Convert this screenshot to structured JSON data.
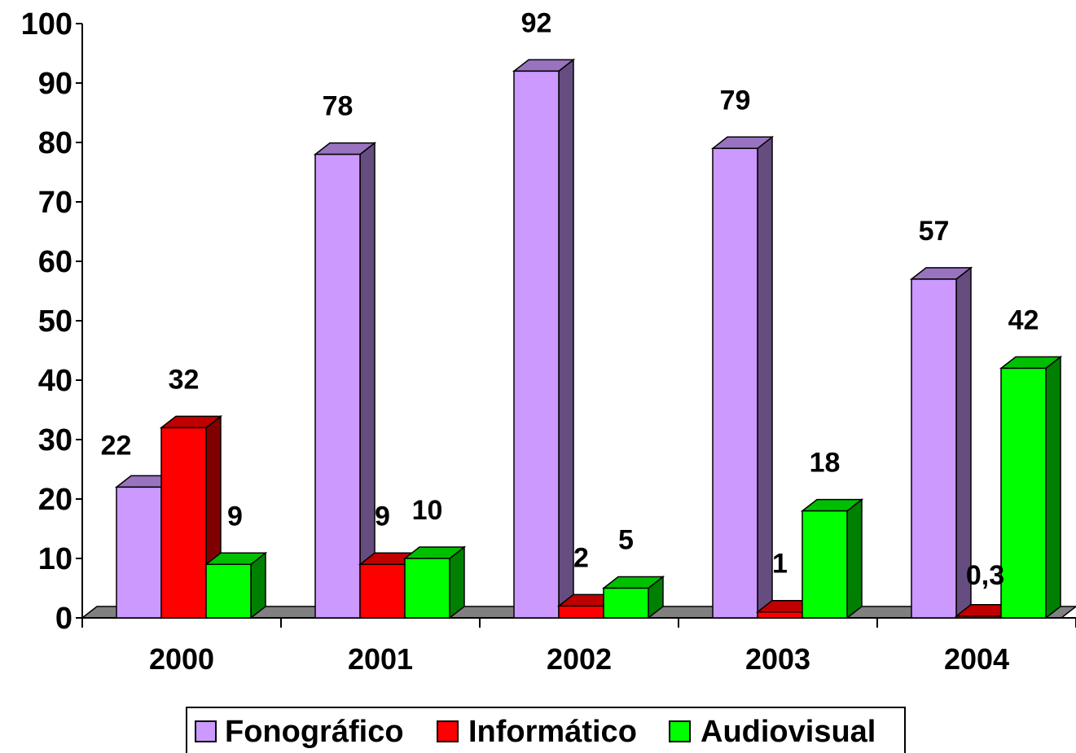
{
  "chart_data": {
    "type": "bar",
    "title": "",
    "xlabel": "",
    "ylabel": "",
    "ylim": [
      0,
      100
    ],
    "yticks": [
      0,
      10,
      20,
      30,
      40,
      50,
      60,
      70,
      80,
      90,
      100
    ],
    "yticks_labels": [
      "0",
      "10",
      "20",
      "30",
      "40",
      "50",
      "60",
      "70",
      "80",
      "90",
      "100"
    ],
    "categories": [
      "2000",
      "2001",
      "2002",
      "2003",
      "2004"
    ],
    "series": [
      {
        "name": "Fonográfico",
        "color": "#CC99FF",
        "values": [
          22,
          78,
          92,
          79,
          57
        ],
        "labels": [
          "22",
          "78",
          "92",
          "79",
          "57"
        ]
      },
      {
        "name": "Informático",
        "color": "#FF0000",
        "values": [
          32,
          9,
          2,
          1,
          0.3
        ],
        "labels": [
          "32",
          "9",
          "2",
          "1",
          "0,3"
        ]
      },
      {
        "name": "Audiovisual",
        "color": "#00FF00",
        "values": [
          9,
          10,
          5,
          18,
          42
        ],
        "labels": [
          "9",
          "10",
          "5",
          "18",
          "42"
        ]
      }
    ],
    "grid": false,
    "legend_position": "bottom",
    "style": "3d-clustered-column"
  }
}
